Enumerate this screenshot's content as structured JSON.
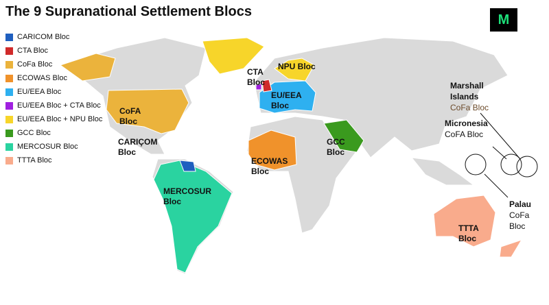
{
  "title": "The 9 Supranational Settlement Blocs",
  "logo": "M",
  "legend": [
    {
      "name": "CARICOM Bloc",
      "color": "#1f5fbf"
    },
    {
      "name": "CTA Bloc",
      "color": "#d02a2a"
    },
    {
      "name": "CoFa Bloc",
      "color": "#ebb33c"
    },
    {
      "name": "ECOWAS Bloc",
      "color": "#f0922b"
    },
    {
      "name": "EU/EEA Bloc",
      "color": "#2eb0f0"
    },
    {
      "name": "EU/EEA Bloc + CTA Bloc",
      "color": "#a020e0"
    },
    {
      "name": "EU/EEA Bloc + NPU Bloc",
      "color": "#f7d52a"
    },
    {
      "name": "GCC Bloc",
      "color": "#3a9a1e"
    },
    {
      "name": "MERCOSUR Bloc",
      "color": "#2ad3a0"
    },
    {
      "name": "TTTA Bloc",
      "color": "#f9ab8c"
    }
  ],
  "map_labels": {
    "cofa": "CoFA Bloc",
    "caricom": "CARIÇOM Bloc",
    "mercosur": "MERCOSUR Bloc",
    "cta": "CTA Bloc",
    "npu": "NPU Bloc",
    "eu": "EU/EEA Bloc",
    "ecowas": "ECOWAS Bloc",
    "gcc": "GCC Bloc",
    "ttta": "TTTA Bloc"
  },
  "pacific": [
    {
      "name": "Marshall Islands",
      "bloc": "CoFa Bloc"
    },
    {
      "name": "Micronesia",
      "bloc": "CoFA Bloc"
    },
    {
      "name": "Palau",
      "bloc": "CoFa Bloc"
    }
  ]
}
